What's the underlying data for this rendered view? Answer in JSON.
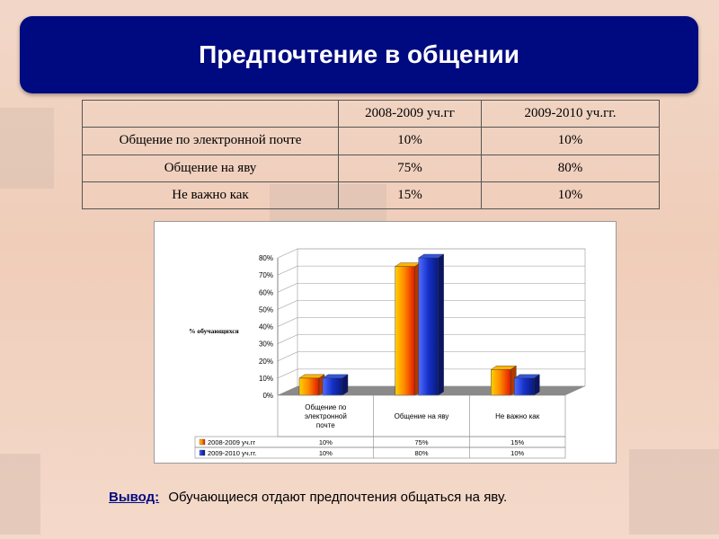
{
  "title": "Предпочтение в общении",
  "table": {
    "headers": [
      "",
      "2008-2009 уч.гг",
      "2009-2010 уч.гг."
    ],
    "rows": [
      [
        "Общение по электронной почте",
        "10%",
        "10%"
      ],
      [
        "Общение на яву",
        "75%",
        "80%"
      ],
      [
        "Не важно как",
        "15%",
        "10%"
      ]
    ]
  },
  "chart_data": {
    "type": "bar",
    "categories": [
      "Общение по электронной почте",
      "Общение на яву",
      "Не важно как"
    ],
    "series": [
      {
        "name": "2008-2009 уч.гг",
        "values": [
          10,
          75,
          15
        ],
        "color": "#ff8c00"
      },
      {
        "name": "2009-2010 уч.гг.",
        "values": [
          10,
          80,
          10
        ],
        "color": "#1a33cc"
      }
    ],
    "value_labels": [
      [
        "10%",
        "75%",
        "15%"
      ],
      [
        "10%",
        "80%",
        "10%"
      ]
    ],
    "ylabel": "% обучающихся",
    "ylim": [
      0,
      80
    ],
    "yticks": [
      "0%",
      "10%",
      "20%",
      "30%",
      "40%",
      "50%",
      "60%",
      "70%",
      "80%"
    ],
    "grid": true,
    "legend": "data-table"
  },
  "conclusion": {
    "label": "Вывод:",
    "text": "Обучающиеся отдают предпочтения общаться на яву."
  }
}
